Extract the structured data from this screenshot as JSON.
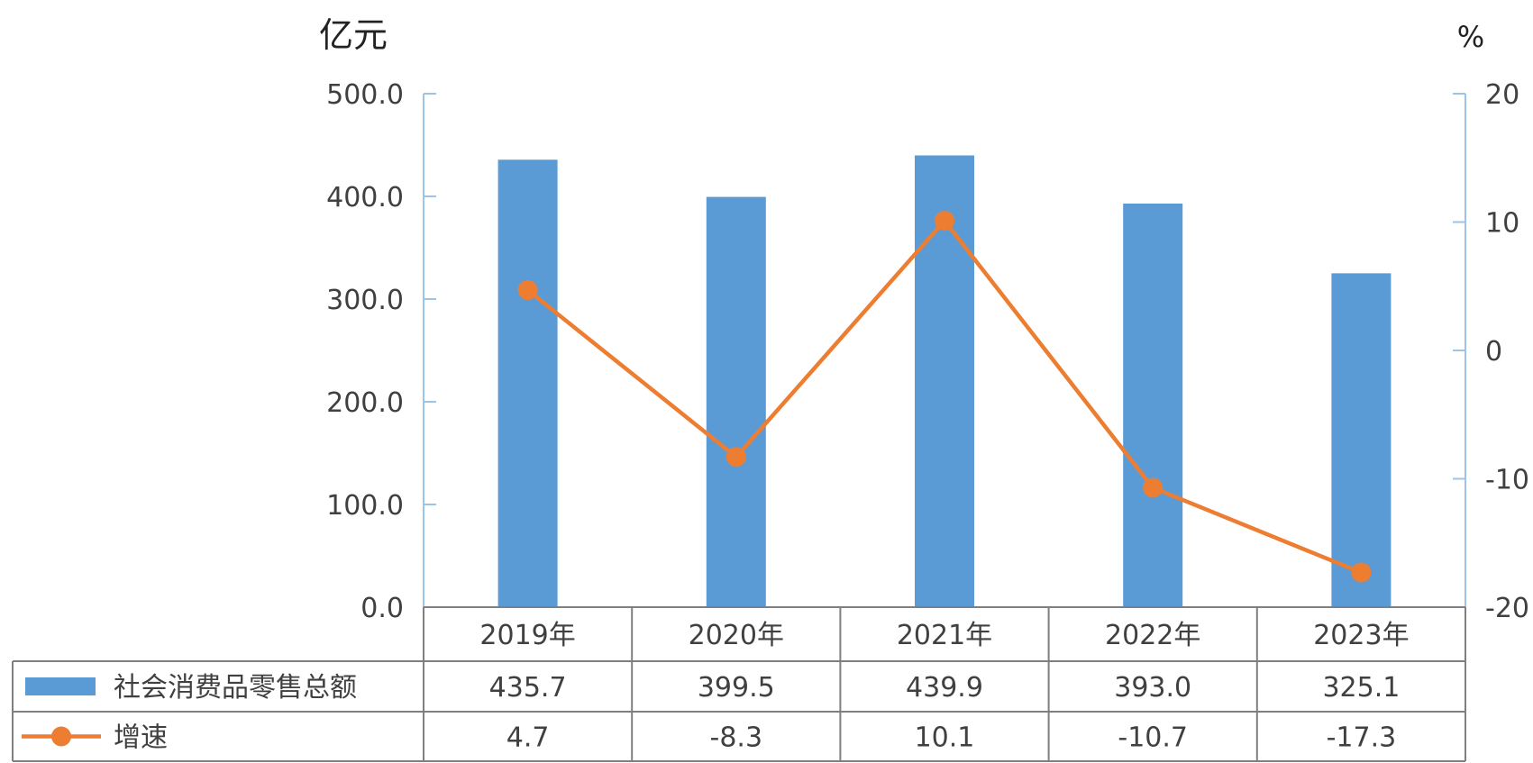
{
  "chart_data": {
    "type": "bar",
    "left_axis_unit": "亿元",
    "right_axis_unit": "%",
    "categories": [
      "2019年",
      "2020年",
      "2021年",
      "2022年",
      "2023年"
    ],
    "left_axis": {
      "ylim": [
        0,
        500
      ],
      "ticks": [
        "0.0",
        "100.0",
        "200.0",
        "300.0",
        "400.0",
        "500.0"
      ]
    },
    "right_axis": {
      "ylim": [
        -20,
        20
      ],
      "ticks": [
        "-20",
        "-10",
        "0",
        "10",
        "20"
      ]
    },
    "series": [
      {
        "name": "社会消费品零售总额",
        "type": "bar",
        "axis": "left",
        "color": "#5b9bd5",
        "values": [
          435.7,
          399.5,
          439.9,
          393.0,
          325.1
        ],
        "labels": [
          "435.7",
          "399.5",
          "439.9",
          "393.0",
          "325.1"
        ]
      },
      {
        "name": "增速",
        "type": "line",
        "axis": "right",
        "color": "#ed7d31",
        "values": [
          4.7,
          -8.3,
          10.1,
          -10.7,
          -17.3
        ],
        "labels": [
          "4.7",
          "-8.3",
          "10.1",
          "-10.7",
          "-17.3"
        ]
      }
    ],
    "data_table": true,
    "grid": false
  }
}
